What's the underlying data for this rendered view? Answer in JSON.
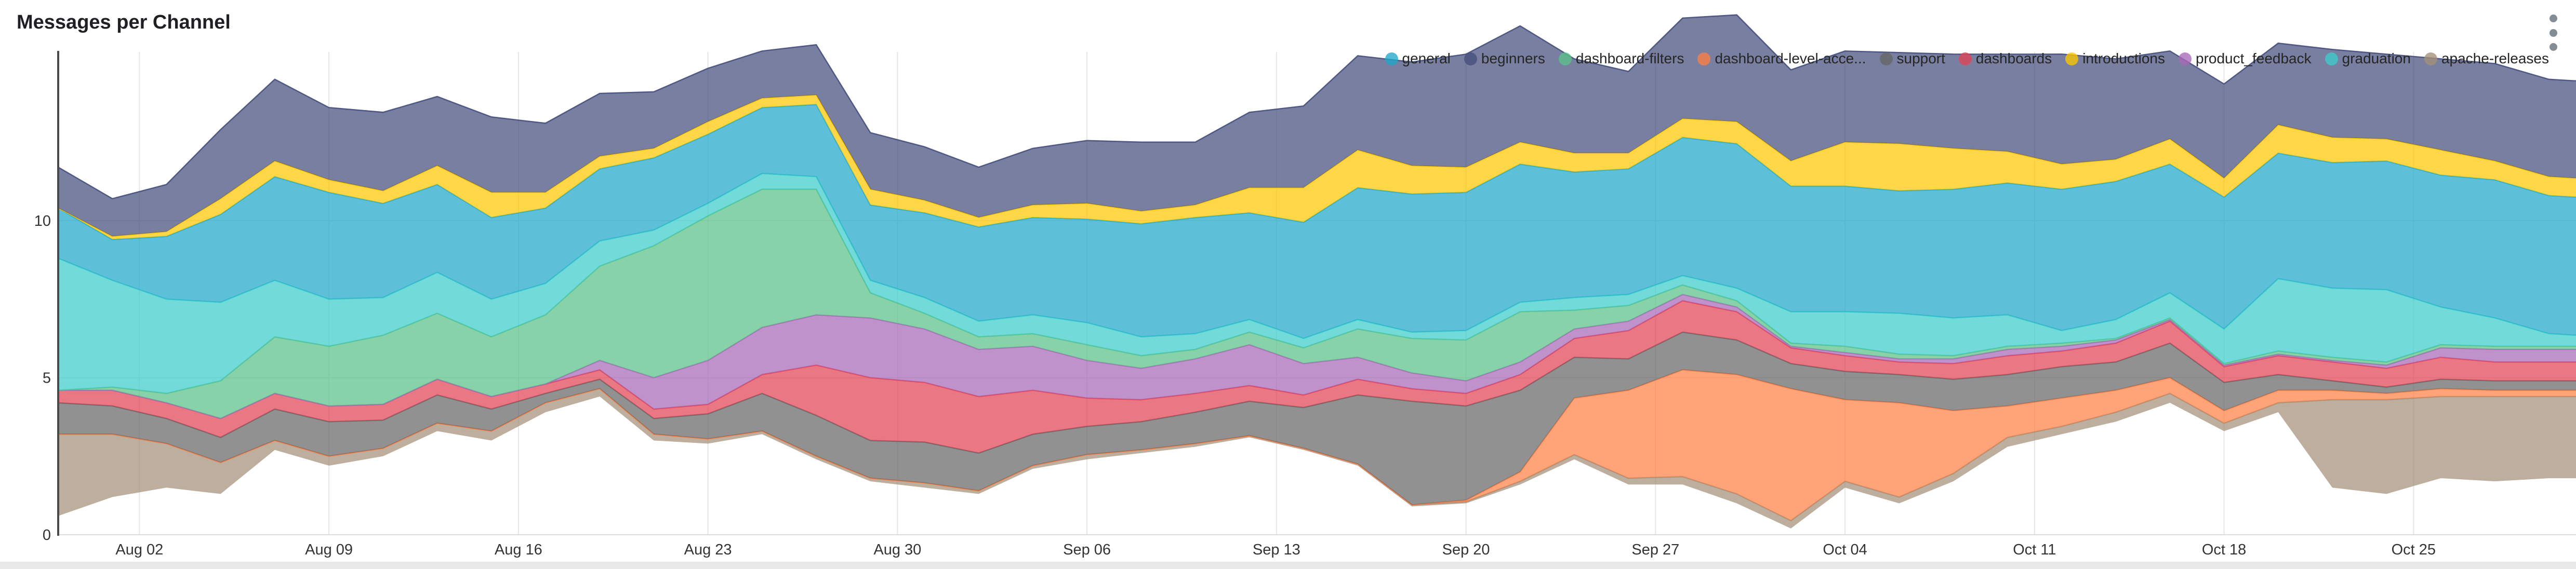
{
  "header": {
    "title": "Messages per Channel",
    "menu_icon": "kebab-vertical"
  },
  "page_colors": {
    "card_background": "#ffffff",
    "page_background": "#e9e9e9",
    "gridline": "#e6e6e6",
    "axis_line": "#4a4a4a",
    "tick_text": "#333333"
  },
  "legend": {
    "position": "top-right",
    "items": [
      {
        "label": "general",
        "color": "#1FA8C9"
      },
      {
        "label": "beginners",
        "color": "#454E7C"
      },
      {
        "label": "dashboard-filters",
        "color": "#5AC189"
      },
      {
        "label": "dashboard-level-acce...",
        "color": "#FF7F44"
      },
      {
        "label": "support",
        "color": "#666666"
      },
      {
        "label": "dashboards",
        "color": "#E04355"
      },
      {
        "label": "introductions",
        "color": "#FCC700"
      },
      {
        "label": "product_feedback",
        "color": "#A868B7"
      },
      {
        "label": "graduation",
        "color": "#3CCCCB"
      },
      {
        "label": "apache-releases",
        "color": "#A38F79"
      }
    ]
  },
  "chart_data": {
    "type": "area",
    "variant": "stacked-stream",
    "title": "Messages per Channel",
    "xlabel": "",
    "ylabel": "",
    "grid": true,
    "legend_position": "top-right",
    "y_ticks": [
      0,
      5,
      10
    ],
    "ylim": [
      0,
      15.5
    ],
    "x_day_span": 93,
    "x_ticks": [
      {
        "day": 3,
        "label": "Aug 02"
      },
      {
        "day": 10,
        "label": "Aug 09"
      },
      {
        "day": 17,
        "label": "Aug 16"
      },
      {
        "day": 24,
        "label": "Aug 23"
      },
      {
        "day": 31,
        "label": "Aug 30"
      },
      {
        "day": 38,
        "label": "Sep 06"
      },
      {
        "day": 45,
        "label": "Sep 13"
      },
      {
        "day": 52,
        "label": "Sep 20"
      },
      {
        "day": 59,
        "label": "Sep 27"
      },
      {
        "day": 66,
        "label": "Oct 04"
      },
      {
        "day": 73,
        "label": "Oct 11"
      },
      {
        "day": 80,
        "label": "Oct 18"
      },
      {
        "day": 87,
        "label": "Oct 25"
      }
    ],
    "sample_days": [
      0,
      2,
      4,
      6,
      8,
      10,
      12,
      14,
      16,
      18,
      20,
      22,
      24,
      26,
      28,
      30,
      32,
      34,
      36,
      38,
      40,
      42,
      44,
      46,
      48,
      50,
      52,
      54,
      56,
      58,
      60,
      62,
      64,
      66,
      68,
      70,
      72,
      74,
      76,
      78,
      80,
      82,
      84,
      86,
      88,
      90,
      92,
      93
    ],
    "sample_dates": [
      "Jul 30",
      "Aug 01",
      "Aug 03",
      "Aug 05",
      "Aug 07",
      "Aug 09",
      "Aug 11",
      "Aug 13",
      "Aug 15",
      "Aug 17",
      "Aug 19",
      "Aug 21",
      "Aug 23",
      "Aug 25",
      "Aug 27",
      "Aug 29",
      "Aug 31",
      "Sep 02",
      "Sep 04",
      "Sep 06",
      "Sep 08",
      "Sep 10",
      "Sep 12",
      "Sep 14",
      "Sep 16",
      "Sep 18",
      "Sep 20",
      "Sep 22",
      "Sep 24",
      "Sep 26",
      "Sep 28",
      "Sep 30",
      "Oct 02",
      "Oct 04",
      "Oct 06",
      "Oct 08",
      "Oct 10",
      "Oct 12",
      "Oct 14",
      "Oct 16",
      "Oct 18",
      "Oct 20",
      "Oct 22",
      "Oct 24",
      "Oct 26",
      "Oct 28",
      "Oct 30",
      "Oct 31"
    ],
    "baseline_offset": [
      0.6,
      1.2,
      1.5,
      1.3,
      2.7,
      2.2,
      2.5,
      3.3,
      3.0,
      3.9,
      4.4,
      3.0,
      2.9,
      3.2,
      2.4,
      1.7,
      1.5,
      1.3,
      2.1,
      2.4,
      2.6,
      2.8,
      3.1,
      2.7,
      2.2,
      0.9,
      1.0,
      1.6,
      2.4,
      1.6,
      1.6,
      1.0,
      0.2,
      1.5,
      1.0,
      1.7,
      2.8,
      3.2,
      3.6,
      4.2,
      3.3,
      3.9,
      1.5,
      1.3,
      1.8,
      1.7,
      1.8,
      1.8
    ],
    "stack_order": "bottom-to-top",
    "series": [
      {
        "name": "apache-releases",
        "color": "#A38F79",
        "values": [
          2.6,
          2.0,
          1.4,
          1.0,
          0.3,
          0.3,
          0.25,
          0.25,
          0.3,
          0.3,
          0.25,
          0.2,
          0.15,
          0.1,
          0.1,
          0.1,
          0.15,
          0.1,
          0.1,
          0.15,
          0.1,
          0.1,
          0.05,
          0.05,
          0.05,
          0.05,
          0.05,
          0.1,
          0.15,
          0.2,
          0.25,
          0.3,
          0.25,
          0.2,
          0.2,
          0.25,
          0.3,
          0.25,
          0.3,
          0.3,
          0.25,
          0.3,
          2.8,
          3.0,
          2.6,
          2.7,
          2.6,
          2.6
        ]
      },
      {
        "name": "dashboard-level-acce...",
        "color": "#FF7F44",
        "values": [
          0,
          0,
          0,
          0,
          0,
          0,
          0,
          0,
          0,
          0,
          0,
          0,
          0,
          0,
          0,
          0,
          0,
          0,
          0,
          0,
          0,
          0,
          0,
          0,
          0,
          0,
          0.05,
          0.3,
          1.8,
          2.8,
          3.4,
          3.8,
          4.2,
          2.6,
          3.0,
          2.0,
          1.0,
          0.9,
          0.7,
          0.5,
          0.4,
          0.4,
          0.3,
          0.2,
          0.25,
          0.2,
          0.2,
          0.2
        ]
      },
      {
        "name": "support",
        "color": "#666666",
        "values": [
          1.0,
          0.9,
          0.8,
          0.8,
          1.0,
          1.1,
          0.9,
          0.9,
          0.7,
          0.3,
          0.3,
          0.5,
          0.8,
          1.2,
          1.3,
          1.2,
          1.3,
          1.2,
          1.0,
          0.9,
          0.9,
          1.0,
          1.1,
          1.3,
          2.2,
          3.3,
          3.0,
          2.6,
          1.3,
          1.0,
          1.2,
          1.1,
          0.8,
          0.9,
          0.9,
          1.0,
          1.0,
          1.0,
          0.9,
          1.1,
          0.9,
          0.5,
          0.3,
          0.2,
          0.3,
          0.3,
          0.3,
          0.3
        ]
      },
      {
        "name": "dashboards",
        "color": "#E04355",
        "values": [
          0.4,
          0.5,
          0.5,
          0.6,
          0.5,
          0.5,
          0.5,
          0.5,
          0.4,
          0.3,
          0.3,
          0.3,
          0.3,
          0.6,
          1.6,
          2.0,
          1.9,
          1.8,
          1.4,
          0.9,
          0.7,
          0.6,
          0.5,
          0.4,
          0.5,
          0.4,
          0.4,
          0.5,
          0.6,
          0.9,
          1.0,
          0.9,
          0.5,
          0.5,
          0.4,
          0.5,
          0.6,
          0.5,
          0.6,
          0.7,
          0.5,
          0.6,
          0.6,
          0.6,
          0.7,
          0.6,
          0.6,
          0.6
        ]
      },
      {
        "name": "product_feedback",
        "color": "#A868B7",
        "values": [
          0,
          0,
          0,
          0,
          0,
          0,
          0,
          0,
          0,
          0,
          0.3,
          1.0,
          1.4,
          1.5,
          1.6,
          1.9,
          1.7,
          1.5,
          1.4,
          1.2,
          1.0,
          1.1,
          1.3,
          1.0,
          0.7,
          0.5,
          0.4,
          0.4,
          0.3,
          0.3,
          0.2,
          0.15,
          0.05,
          0.1,
          0.1,
          0.15,
          0.2,
          0.15,
          0.1,
          0.05,
          0.05,
          0.05,
          0.05,
          0.1,
          0.3,
          0.4,
          0.4,
          0.4
        ]
      },
      {
        "name": "dashboard-filters",
        "color": "#5AC189",
        "values": [
          0,
          0.1,
          0.3,
          1.2,
          1.8,
          1.9,
          2.2,
          2.1,
          1.9,
          2.2,
          3.0,
          4.2,
          4.6,
          4.4,
          4.0,
          0.8,
          0.5,
          0.4,
          0.4,
          0.5,
          0.4,
          0.3,
          0.4,
          0.5,
          0.9,
          1.1,
          1.3,
          1.6,
          0.6,
          0.5,
          0.3,
          0.2,
          0.1,
          0.2,
          0.15,
          0.1,
          0.1,
          0.1,
          0.05,
          0.05,
          0.05,
          0.1,
          0.1,
          0.1,
          0.1,
          0.1,
          0.1,
          0.1
        ]
      },
      {
        "name": "graduation",
        "color": "#3CCCCB",
        "values": [
          4.2,
          3.4,
          3.0,
          2.5,
          1.8,
          1.5,
          1.2,
          1.3,
          1.2,
          1.0,
          0.8,
          0.5,
          0.4,
          0.5,
          0.4,
          0.4,
          0.5,
          0.5,
          0.6,
          0.7,
          0.6,
          0.5,
          0.4,
          0.3,
          0.3,
          0.2,
          0.3,
          0.3,
          0.4,
          0.35,
          0.3,
          0.4,
          1.0,
          1.1,
          1.3,
          1.2,
          1.0,
          0.4,
          0.6,
          0.8,
          1.1,
          2.3,
          2.2,
          2.3,
          1.2,
          0.9,
          0.4,
          0.35
        ]
      },
      {
        "name": "general",
        "color": "#1FA8C9",
        "values": [
          1.6,
          1.3,
          2.0,
          2.8,
          3.3,
          3.4,
          3.0,
          2.8,
          2.6,
          2.4,
          2.3,
          2.3,
          2.2,
          2.1,
          2.3,
          2.4,
          2.7,
          3.0,
          3.1,
          3.3,
          3.6,
          3.7,
          3.4,
          3.7,
          4.2,
          4.4,
          4.4,
          4.4,
          4.0,
          4.0,
          4.4,
          4.6,
          4.0,
          4.0,
          3.9,
          4.1,
          4.2,
          4.5,
          4.4,
          4.1,
          4.2,
          4.0,
          4.0,
          4.1,
          4.2,
          4.4,
          4.4,
          4.4
        ]
      },
      {
        "name": "introductions",
        "color": "#FCC700",
        "values": [
          0,
          0.1,
          0.15,
          0.5,
          0.5,
          0.4,
          0.4,
          0.6,
          0.8,
          0.5,
          0.4,
          0.3,
          0.4,
          0.3,
          0.3,
          0.5,
          0.4,
          0.3,
          0.4,
          0.5,
          0.4,
          0.4,
          0.8,
          1.1,
          1.2,
          0.9,
          0.8,
          0.7,
          0.6,
          0.5,
          0.6,
          0.7,
          0.8,
          1.4,
          1.5,
          1.3,
          1.0,
          0.8,
          0.7,
          0.8,
          0.6,
          0.9,
          0.8,
          0.7,
          0.8,
          0.6,
          0.6,
          0.6
        ]
      },
      {
        "name": "beginners",
        "color": "#454E7C",
        "values": [
          1.3,
          1.2,
          1.5,
          2.2,
          2.6,
          2.3,
          2.5,
          2.2,
          2.4,
          2.2,
          2.0,
          1.8,
          1.7,
          1.5,
          1.6,
          1.8,
          1.7,
          1.6,
          1.8,
          2.0,
          2.2,
          2.0,
          2.4,
          2.6,
          3.0,
          3.3,
          3.6,
          3.7,
          3.0,
          2.6,
          3.2,
          3.4,
          2.9,
          2.9,
          2.9,
          3.0,
          3.1,
          3.5,
          3.2,
          2.8,
          3.0,
          2.6,
          2.8,
          2.7,
          2.9,
          3.1,
          3.1,
          3.1
        ]
      }
    ]
  }
}
